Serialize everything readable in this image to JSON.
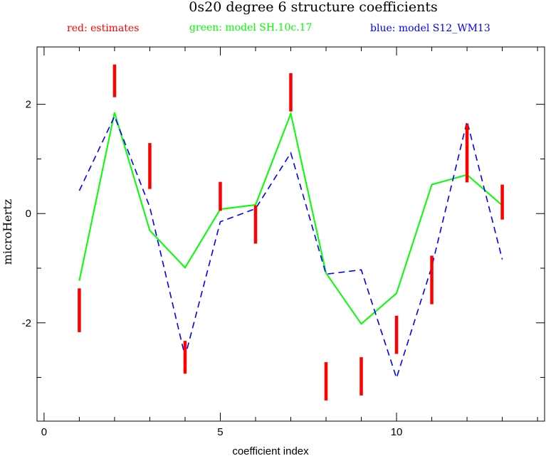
{
  "chart_data": {
    "type": "line",
    "title": "0s20 degree 6 structure coefficients",
    "legend": {
      "red": "red: estimates",
      "green": "green: model SH.10c.17",
      "blue": "blue: model S12_WM13"
    },
    "xlabel": "coefficient index",
    "ylabel": "microHertz",
    "xlim": [
      -0.2,
      14.2
    ],
    "ylim": [
      -3.8,
      3.05
    ],
    "x_major_ticks": [
      0,
      5,
      10
    ],
    "x_minor_ticks": [
      1,
      2,
      3,
      4,
      6,
      7,
      8,
      9,
      11,
      12,
      13,
      14
    ],
    "y_major_ticks": [
      -2,
      0,
      2
    ],
    "y_minor_ticks": [
      -3,
      -1,
      1
    ],
    "x_tick_labels": [
      "0",
      "5",
      "10"
    ],
    "y_tick_labels": [
      "-2",
      "0",
      "2"
    ],
    "colors": {
      "estimates": "#ff0000",
      "model_green": "#00ff00",
      "model_blue": "#0000ff"
    },
    "estimates": [
      {
        "x": 1,
        "low": -2.17,
        "high": -1.37
      },
      {
        "x": 2,
        "low": 2.13,
        "high": 2.73
      },
      {
        "x": 3,
        "low": 0.45,
        "high": 1.29
      },
      {
        "x": 4,
        "low": -2.93,
        "high": -2.33
      },
      {
        "x": 5,
        "low": 0.05,
        "high": 0.58
      },
      {
        "x": 6,
        "low": -0.55,
        "high": 0.15
      },
      {
        "x": 7,
        "low": 1.87,
        "high": 2.57
      },
      {
        "x": 8,
        "low": -3.42,
        "high": -2.72
      },
      {
        "x": 9,
        "low": -3.33,
        "high": -2.63
      },
      {
        "x": 10,
        "low": -2.57,
        "high": -1.87
      },
      {
        "x": 11,
        "low": -1.66,
        "high": -0.77
      },
      {
        "x": 12,
        "low": 0.57,
        "high": 1.63
      },
      {
        "x": 13,
        "low": -0.11,
        "high": 0.53
      }
    ],
    "series": [
      {
        "x": [
          1,
          2,
          3,
          4,
          5,
          6,
          7,
          8,
          9,
          10,
          11,
          12,
          13
        ],
        "values": [
          -1.23,
          1.85,
          -0.31,
          -0.99,
          0.08,
          0.16,
          1.83,
          -1.09,
          -2.02,
          -1.46,
          0.53,
          0.71,
          0.15
        ]
      },
      {
        "x": [
          1,
          2,
          3,
          4,
          5,
          6,
          7,
          8,
          9,
          10,
          11,
          12,
          13
        ],
        "values": [
          0.42,
          1.78,
          0.12,
          -2.62,
          -0.15,
          0.09,
          1.11,
          -1.11,
          -1.03,
          -3.01,
          -0.97,
          1.69,
          -0.84
        ]
      }
    ]
  }
}
